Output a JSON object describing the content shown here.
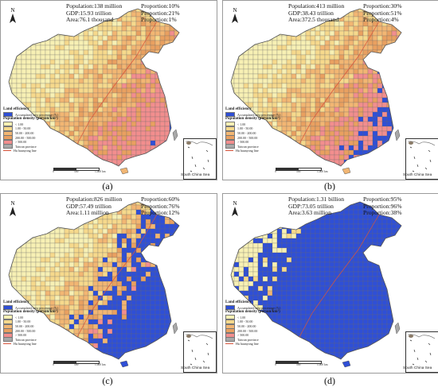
{
  "colors": {
    "sea": "#ffffff",
    "very_low": "#f7f0b4",
    "low": "#f6d98c",
    "mid": "#f2b673",
    "high": "#e9a060",
    "very_high": "#f28e8e",
    "accumulated": "#2f4fd6",
    "taiwan": "#a8a8a8",
    "boundary": "#6a6a6a",
    "hu_line": "#d9543a"
  },
  "panels": [
    {
      "id": "a",
      "label": "(a)",
      "population": "Population:138 million",
      "population_share": "Proportion:10%",
      "gdp": "GDP:15.93 trillion",
      "gdp_share": "Proportion:21%",
      "area": "Area:76.1 thousand",
      "area_share": "Proportion:1%",
      "accumulated_level": 0.05
    },
    {
      "id": "b",
      "label": "(b)",
      "population": "Population:413 million",
      "population_share": "Proportion:30%",
      "gdp": "GDP:38.43 trillion",
      "gdp_share": "Proportion:51%",
      "area": "Area:372.5 thousand",
      "area_share": "Proportion:4%",
      "accumulated_level": 0.2
    },
    {
      "id": "c",
      "label": "(c)",
      "population": "Population:826 million",
      "population_share": "Proportion:60%",
      "gdp": "GDP:57.49 trillion",
      "gdp_share": "Proportion:76%",
      "area": "Area:1.11 million",
      "area_share": "Proportion:12%",
      "accumulated_level": 0.45
    },
    {
      "id": "d",
      "label": "(d)",
      "population": "Population:1.31 billion",
      "population_share": "Proportion:95%",
      "gdp": "GDP:73.05 trillion",
      "gdp_share": "Proportion:96%",
      "area": "Area:3.63 million",
      "area_share": "Proportion:38%",
      "accumulated_level": 0.85
    }
  ],
  "legend": {
    "title": "Land efficiency",
    "accumulated_label": "Accumulated area percentage (%)",
    "density_title": "Population density (person/km²)",
    "classes": [
      "< 1.00",
      "1.00 - 50.00",
      "50.00 - 200.00",
      "200.00 - 500.00",
      "> 500.00"
    ],
    "taiwan_label": "Taiwan province",
    "hu_line_label": "Hu huanyong line"
  },
  "north_label": "N",
  "scale_ticks": [
    "0",
    "500",
    "1,000 km"
  ],
  "inset_label": "South China Sea"
}
